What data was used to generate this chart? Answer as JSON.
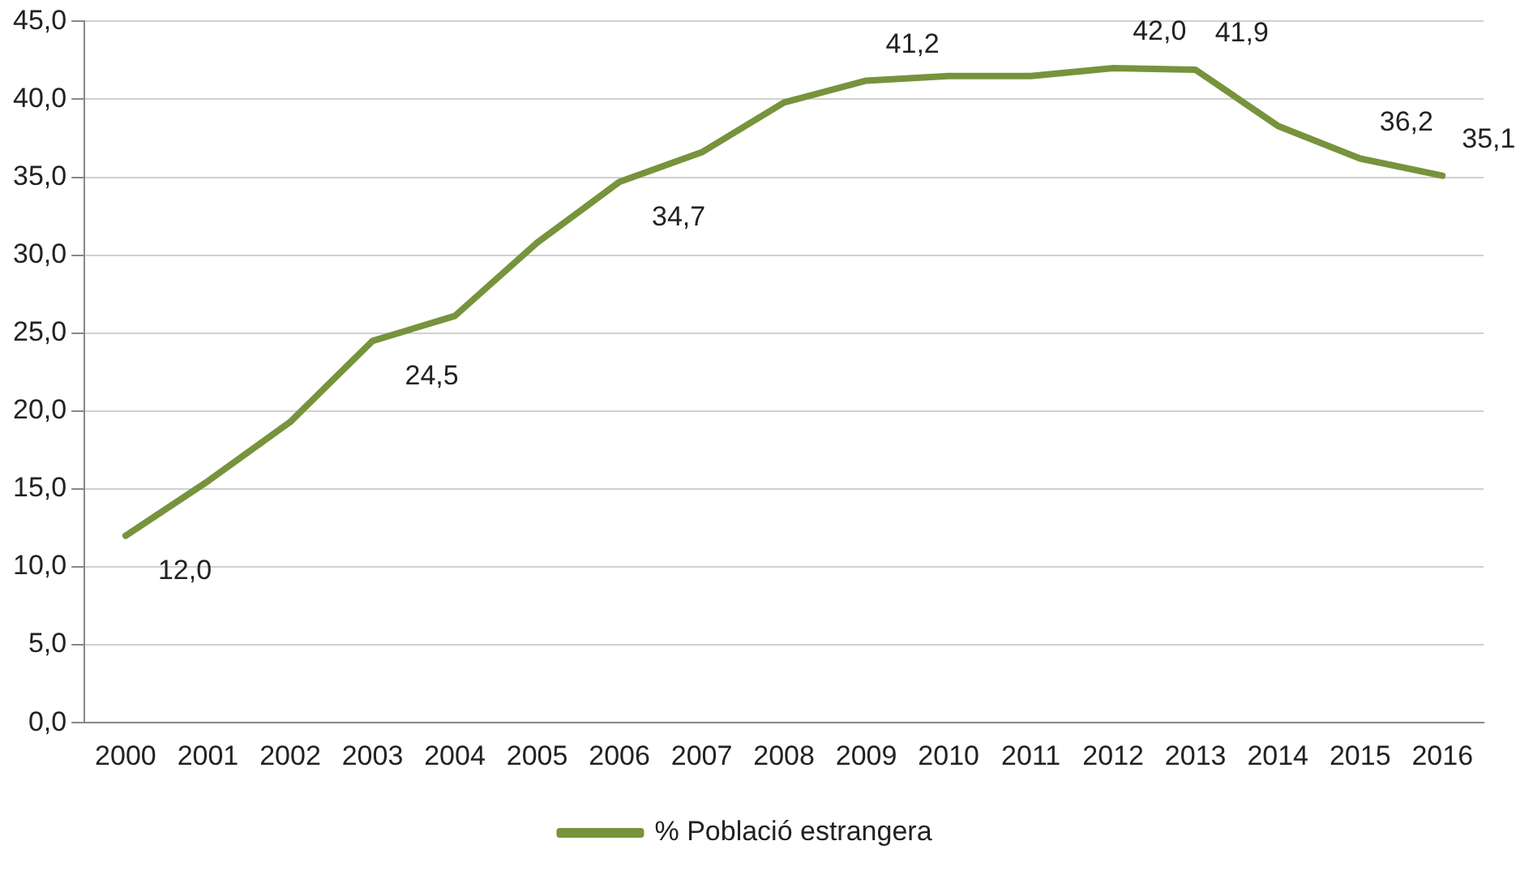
{
  "chart_data": {
    "type": "line",
    "categories": [
      "2000",
      "2001",
      "2002",
      "2003",
      "2004",
      "2005",
      "2006",
      "2007",
      "2008",
      "2009",
      "2010",
      "2011",
      "2012",
      "2013",
      "2014",
      "2015",
      "2016"
    ],
    "series": [
      {
        "name": "% Població estrangera",
        "color": "#77933c",
        "values": [
          12.0,
          15.5,
          19.3,
          24.5,
          26.1,
          30.8,
          34.7,
          36.6,
          39.8,
          41.2,
          41.5,
          41.5,
          42.0,
          41.9,
          38.3,
          36.2,
          35.1
        ],
        "value_labels": [
          "12,0",
          null,
          null,
          "24,5",
          null,
          null,
          "34,7",
          null,
          null,
          "41,2",
          null,
          null,
          "42,0",
          "41,9",
          null,
          "36,2",
          "35,1"
        ]
      }
    ],
    "ylim": [
      0,
      45
    ],
    "yticks": [
      {
        "value": 0,
        "label": "0,0"
      },
      {
        "value": 5,
        "label": "5,0"
      },
      {
        "value": 10,
        "label": "10,0"
      },
      {
        "value": 15,
        "label": "15,0"
      },
      {
        "value": 20,
        "label": "20,0"
      },
      {
        "value": 25,
        "label": "25,0"
      },
      {
        "value": 30,
        "label": "30,0"
      },
      {
        "value": 35,
        "label": "35,0"
      },
      {
        "value": 40,
        "label": "40,0"
      },
      {
        "value": 45,
        "label": "45,0"
      }
    ],
    "grid": "y",
    "legend": "bottom",
    "marker": "none",
    "line_style": "solid"
  }
}
